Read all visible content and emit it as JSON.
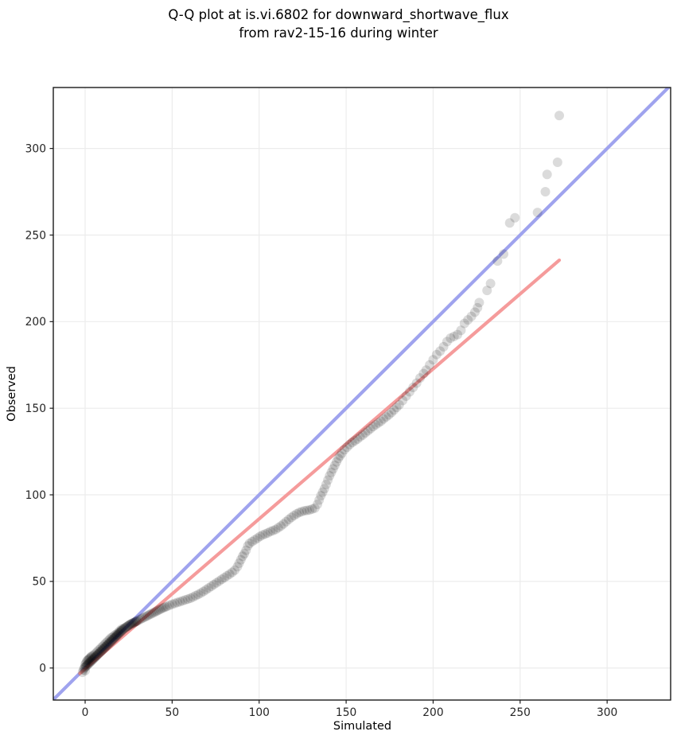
{
  "figure": {
    "title_lines": [
      "Q-Q plot at is.vi.6802 for downward_shortwave_flux",
      "from rav2-15-16 during winter"
    ],
    "background_color": "#ffffff"
  },
  "chart_data": {
    "type": "scatter",
    "title": "Q-Q plot at is.vi.6802 for downward_shortwave_flux from rav2-15-16 during winter",
    "xlabel": "Simulated",
    "ylabel": "Observed",
    "xlim": [
      -18.3,
      336.5
    ],
    "ylim": [
      -18.5,
      335.2
    ],
    "x_ticks": [
      0,
      50,
      100,
      150,
      200,
      250,
      300
    ],
    "y_ticks": [
      0,
      50,
      100,
      150,
      200,
      250,
      300
    ],
    "grid": true,
    "legend": "none",
    "colors": {
      "grid": "#ececec",
      "spine": "#1a1a1a",
      "tick_label": "#262626",
      "identity_line": "#9fa3ee",
      "fit_line": "#f59b9b",
      "points": "#000000"
    },
    "identity_line": {
      "name": "1:1 reference line",
      "from": [
        -19,
        -19
      ],
      "to": [
        337,
        337
      ]
    },
    "fit_line": {
      "name": "quantile fit line",
      "from": [
        -3,
        -3.1
      ],
      "to": [
        272.5,
        235.5
      ]
    },
    "points_style": {
      "radius_px": 6,
      "opacity": 0.14
    },
    "points": [
      [
        -1.5,
        -2.5
      ],
      [
        -1,
        -1
      ],
      [
        -0.5,
        0
      ],
      [
        0,
        -1.5
      ],
      [
        0,
        0.5
      ],
      [
        0,
        2
      ],
      [
        0.5,
        1
      ],
      [
        0.5,
        3
      ],
      [
        1,
        1.5
      ],
      [
        1,
        4
      ],
      [
        1.5,
        2
      ],
      [
        1.5,
        4.5
      ],
      [
        2,
        2.5
      ],
      [
        2,
        5
      ],
      [
        2.5,
        3
      ],
      [
        2.5,
        5.5
      ],
      [
        3,
        3.5
      ],
      [
        3,
        6
      ],
      [
        3.5,
        4
      ],
      [
        3.5,
        6.5
      ],
      [
        4,
        4.5
      ],
      [
        4,
        7
      ],
      [
        4.5,
        5
      ],
      [
        5,
        5.5
      ],
      [
        5,
        7.5
      ],
      [
        5.5,
        6
      ],
      [
        6,
        6.5
      ],
      [
        6,
        8.5
      ],
      [
        6.5,
        7
      ],
      [
        7,
        7.5
      ],
      [
        7,
        9.5
      ],
      [
        7.5,
        8
      ],
      [
        8,
        8.5
      ],
      [
        8,
        10.5
      ],
      [
        8.5,
        9
      ],
      [
        9,
        9.5
      ],
      [
        9,
        11.5
      ],
      [
        9.5,
        10
      ],
      [
        10,
        10.5
      ],
      [
        10,
        12.5
      ],
      [
        10.5,
        11
      ],
      [
        11,
        11.5
      ],
      [
        11,
        13.5
      ],
      [
        11.5,
        12
      ],
      [
        12,
        12.5
      ],
      [
        12,
        14.5
      ],
      [
        12.5,
        13
      ],
      [
        13,
        13.5
      ],
      [
        13,
        15.5
      ],
      [
        13.5,
        14
      ],
      [
        14,
        14.5
      ],
      [
        14,
        16.5
      ],
      [
        14.5,
        15
      ],
      [
        15,
        15.5
      ],
      [
        15,
        17.5
      ],
      [
        15.5,
        16
      ],
      [
        16,
        16.5
      ],
      [
        16,
        18
      ],
      [
        16.5,
        17
      ],
      [
        17,
        17.5
      ],
      [
        17,
        19
      ],
      [
        17.5,
        18
      ],
      [
        18,
        18.5
      ],
      [
        18,
        19.5
      ],
      [
        18.5,
        19
      ],
      [
        19,
        19.5
      ],
      [
        19,
        20.5
      ],
      [
        19.5,
        20
      ],
      [
        20,
        20.5
      ],
      [
        20,
        21.5
      ],
      [
        20.5,
        21
      ],
      [
        21,
        21.5
      ],
      [
        21,
        22.5
      ],
      [
        21.5,
        22
      ],
      [
        22,
        22.5
      ],
      [
        22.5,
        23
      ],
      [
        23,
        23.2
      ],
      [
        23.5,
        23.5
      ],
      [
        24,
        24
      ],
      [
        24.5,
        24.2
      ],
      [
        25,
        24.5
      ],
      [
        25.5,
        25
      ],
      [
        26,
        25.2
      ],
      [
        26.5,
        25.5
      ],
      [
        27,
        25.8
      ],
      [
        27.5,
        26
      ],
      [
        28,
        26.2
      ],
      [
        28.5,
        26.5
      ],
      [
        29,
        26.8
      ],
      [
        29.5,
        27
      ],
      [
        30,
        27.2
      ],
      [
        31,
        27.8
      ],
      [
        32,
        28.3
      ],
      [
        33,
        28.8
      ],
      [
        34,
        29.3
      ],
      [
        35,
        29.8
      ],
      [
        36,
        30.3
      ],
      [
        37,
        30.8
      ],
      [
        38,
        31.3
      ],
      [
        39,
        31.8
      ],
      [
        40,
        32.3
      ],
      [
        41,
        32.8
      ],
      [
        42,
        33.3
      ],
      [
        43,
        33.8
      ],
      [
        44,
        34.3
      ],
      [
        45,
        34.8
      ],
      [
        46,
        35.2
      ],
      [
        47,
        35.6
      ],
      [
        48.5,
        36.2
      ],
      [
        50,
        36.8
      ],
      [
        51.5,
        37.3
      ],
      [
        53,
        37.8
      ],
      [
        54.5,
        38.3
      ],
      [
        56,
        38.8
      ],
      [
        57.5,
        39.3
      ],
      [
        59,
        39.8
      ],
      [
        60.5,
        40.3
      ],
      [
        62,
        41
      ],
      [
        63.5,
        41.8
      ],
      [
        65,
        42.5
      ],
      [
        66.5,
        43.3
      ],
      [
        68,
        44.2
      ],
      [
        69.5,
        45.2
      ],
      [
        71,
        46.2
      ],
      [
        72.5,
        47.2
      ],
      [
        74,
        48.2
      ],
      [
        75.5,
        49.2
      ],
      [
        77,
        50.2
      ],
      [
        78.5,
        51.2
      ],
      [
        80,
        52.2
      ],
      [
        81.5,
        53.2
      ],
      [
        83,
        54.2
      ],
      [
        84.5,
        55.2
      ],
      [
        86,
        56.5
      ],
      [
        87.5,
        58.5
      ],
      [
        88.5,
        60.5
      ],
      [
        89.5,
        62.5
      ],
      [
        90.5,
        64.5
      ],
      [
        91.5,
        66
      ],
      [
        92.5,
        68
      ],
      [
        93.5,
        70.5
      ],
      [
        94.5,
        72
      ],
      [
        96,
        73
      ],
      [
        97.5,
        74
      ],
      [
        99,
        75
      ],
      [
        100.5,
        76
      ],
      [
        102,
        76.8
      ],
      [
        103.5,
        77.4
      ],
      [
        105,
        78
      ],
      [
        106.5,
        78.8
      ],
      [
        108,
        79.4
      ],
      [
        109.5,
        80
      ],
      [
        111,
        81
      ],
      [
        112.5,
        82
      ],
      [
        114,
        83.2
      ],
      [
        115.5,
        84.5
      ],
      [
        117,
        85.8
      ],
      [
        118.5,
        87
      ],
      [
        120,
        88
      ],
      [
        121.5,
        89
      ],
      [
        123,
        89.8
      ],
      [
        124.5,
        90.3
      ],
      [
        126,
        90.8
      ],
      [
        127.5,
        91
      ],
      [
        129,
        91.3
      ],
      [
        130.5,
        91.8
      ],
      [
        132,
        92.3
      ],
      [
        133.5,
        94.5
      ],
      [
        134.5,
        97
      ],
      [
        135.5,
        99.5
      ],
      [
        136.5,
        101.5
      ],
      [
        137.5,
        103.5
      ],
      [
        138.5,
        106
      ],
      [
        139.5,
        108.5
      ],
      [
        140.5,
        111
      ],
      [
        141.5,
        113
      ],
      [
        142.5,
        115
      ],
      [
        143.5,
        117
      ],
      [
        144.5,
        119
      ],
      [
        145.5,
        121
      ],
      [
        146.5,
        122.5
      ],
      [
        147.5,
        124
      ],
      [
        149,
        126
      ],
      [
        150.5,
        127.5
      ],
      [
        152,
        129
      ],
      [
        153.5,
        130.2
      ],
      [
        155,
        131.2
      ],
      [
        156.5,
        132.2
      ],
      [
        158,
        133.5
      ],
      [
        159.5,
        134.5
      ],
      [
        161,
        135.8
      ],
      [
        162.5,
        137
      ],
      [
        164,
        138.2
      ],
      [
        165.5,
        139.4
      ],
      [
        167,
        140.5
      ],
      [
        168.5,
        141.5
      ],
      [
        170,
        142.5
      ],
      [
        171.5,
        143.8
      ],
      [
        173,
        145
      ],
      [
        174.5,
        146.2
      ],
      [
        176,
        147.5
      ],
      [
        177.5,
        149
      ],
      [
        179,
        150.5
      ],
      [
        180.5,
        152
      ],
      [
        182.5,
        154.5
      ],
      [
        184.5,
        157
      ],
      [
        186.5,
        159.5
      ],
      [
        188.5,
        162
      ],
      [
        190.5,
        164.5
      ],
      [
        192.5,
        167.5
      ],
      [
        194.5,
        170
      ],
      [
        196,
        172
      ],
      [
        198,
        175
      ],
      [
        200,
        178
      ],
      [
        202,
        181
      ],
      [
        204,
        183
      ],
      [
        206,
        185.5
      ],
      [
        208,
        188.5
      ],
      [
        210,
        190.5
      ],
      [
        212,
        191.5
      ],
      [
        214,
        192.5
      ],
      [
        216,
        195
      ],
      [
        218,
        199
      ],
      [
        220,
        201
      ],
      [
        222,
        203
      ],
      [
        224,
        205.5
      ],
      [
        225.5,
        208
      ],
      [
        226.5,
        211
      ],
      [
        231,
        218
      ],
      [
        233,
        222
      ],
      [
        237,
        235
      ],
      [
        240.5,
        239
      ],
      [
        244,
        257
      ],
      [
        247,
        260
      ],
      [
        260,
        263
      ],
      [
        264.5,
        275
      ],
      [
        265.5,
        285
      ],
      [
        271.5,
        292
      ],
      [
        272.5,
        319
      ]
    ]
  }
}
